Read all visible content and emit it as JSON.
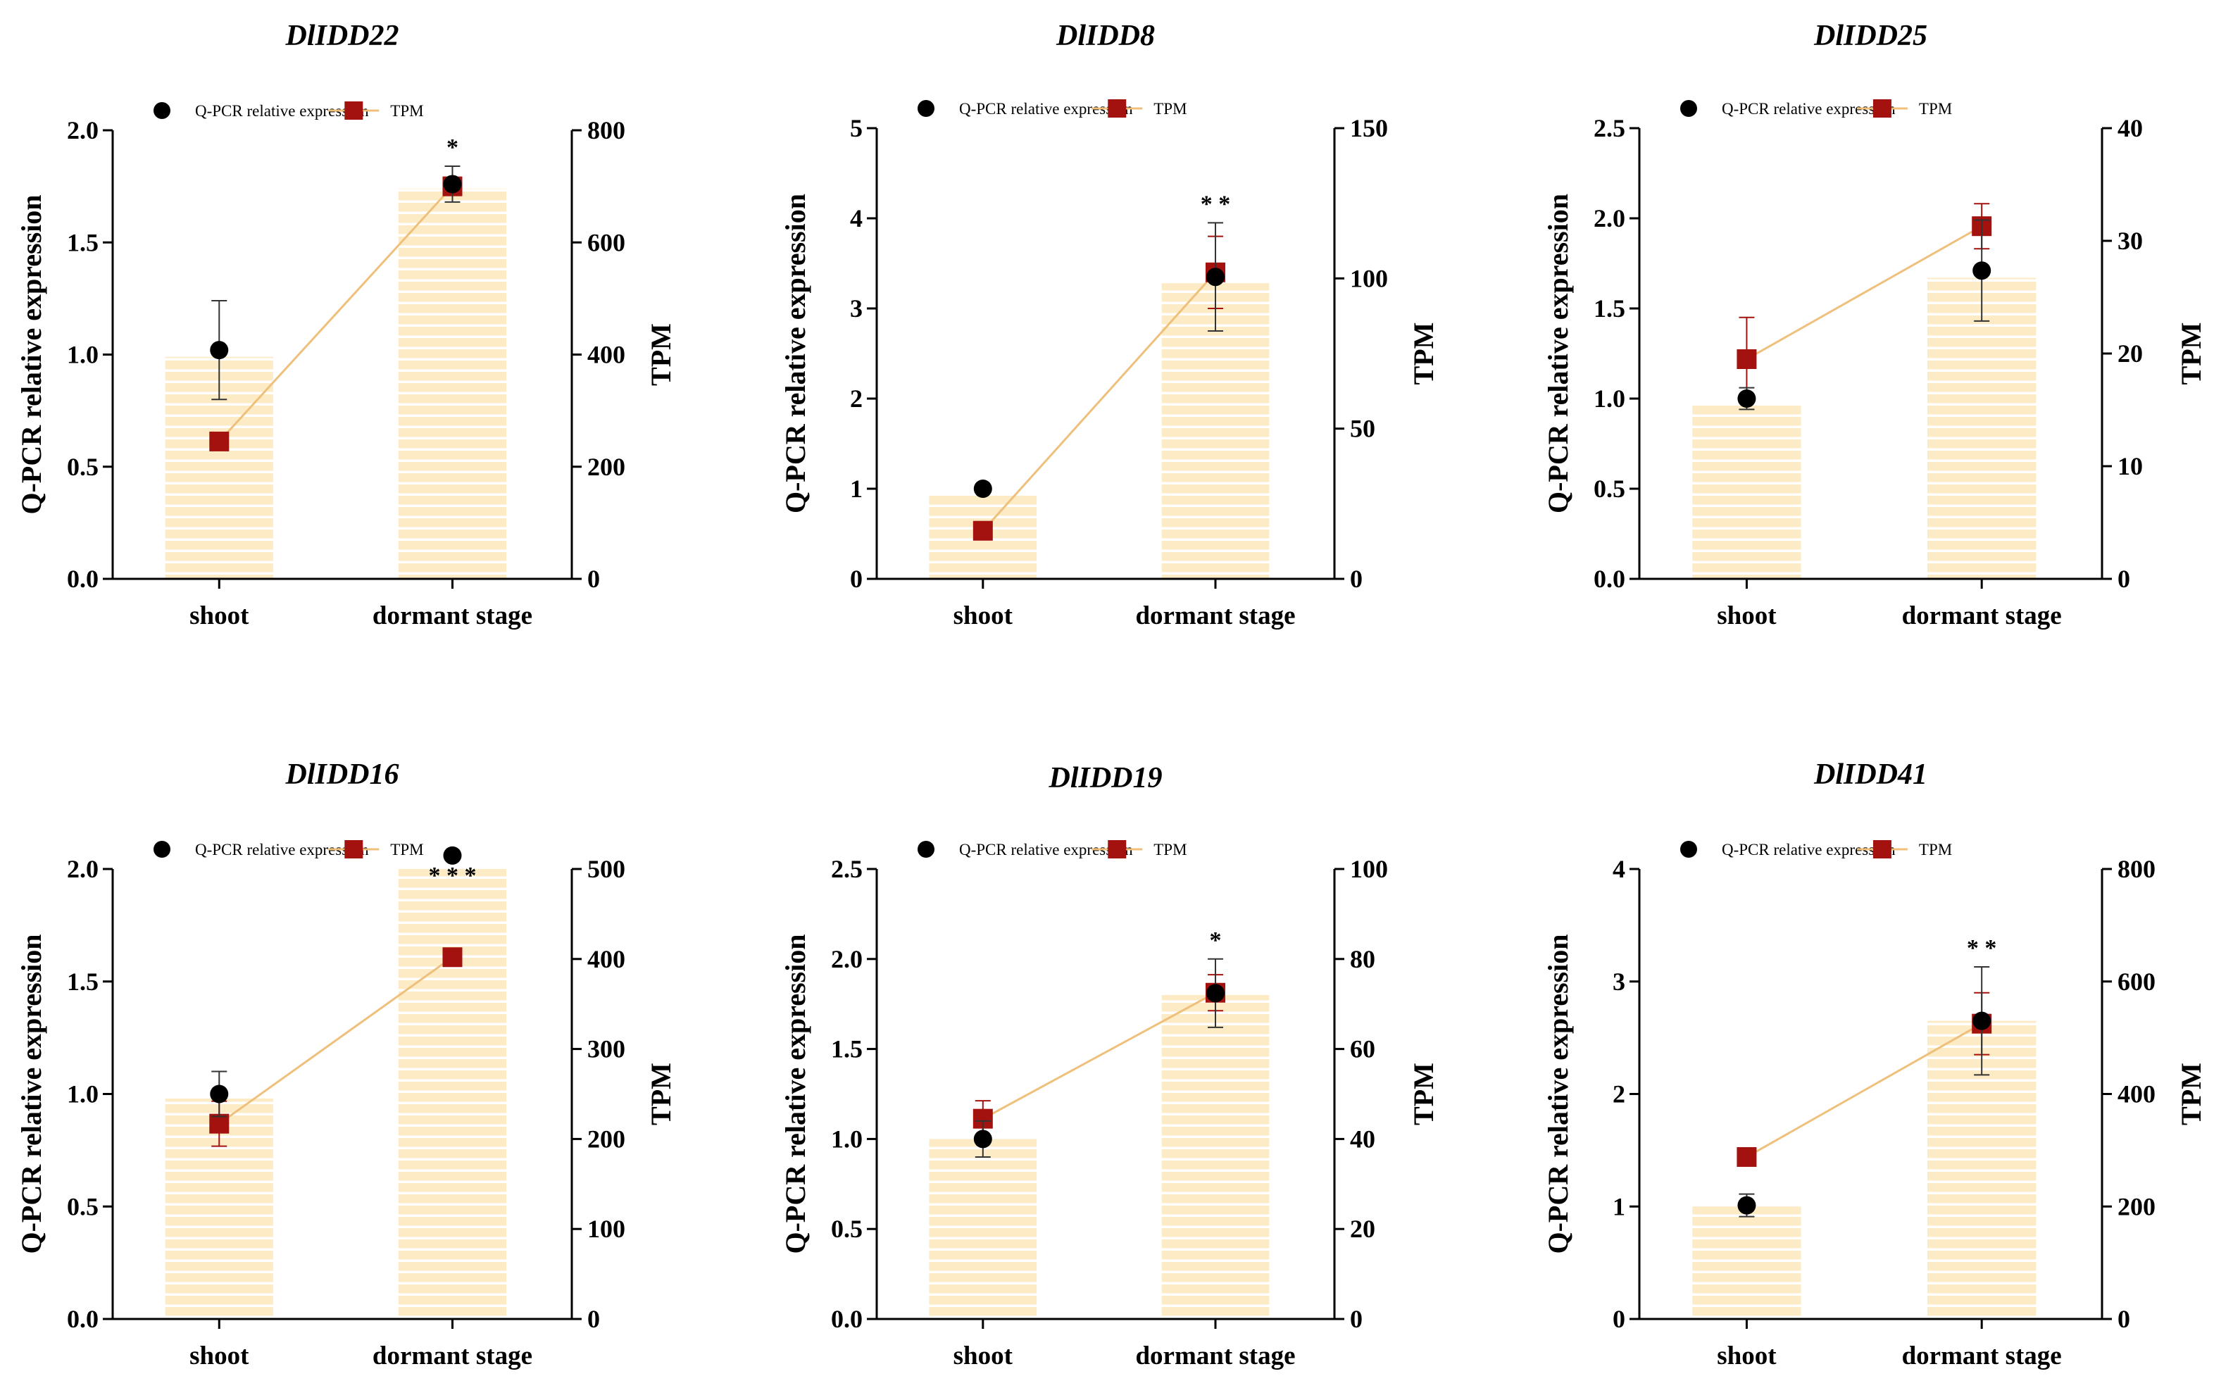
{
  "figure": {
    "legend": {
      "qpcr_label": "Q-PCR relative expression",
      "tpm_label": "TPM"
    },
    "colors": {
      "bar": "#fcebc4",
      "bar_stripe": "#ffffff",
      "line": "#eec07c",
      "marker_tpm": "#a3120f",
      "marker_qpcr": "#000000",
      "axis": "#000000"
    }
  },
  "chart_data": [
    {
      "type": "bar",
      "title": "DlIDD22",
      "categories": [
        "shoot",
        "dormant stage"
      ],
      "ylabel": "Q-PCR relative expression",
      "y2label": "TPM",
      "ylim": [
        0,
        2.0
      ],
      "yticks": [
        0.0,
        0.5,
        1.0,
        1.5,
        2.0
      ],
      "ytick_labels": [
        "0.0",
        "0.5",
        "1.0",
        "1.5",
        "2.0"
      ],
      "y2lim": [
        0,
        800
      ],
      "y2ticks": [
        0,
        200,
        400,
        600,
        800
      ],
      "y2tick_labels": [
        "0",
        "200",
        "400",
        "600",
        "800"
      ],
      "series": [
        {
          "name": "Q-PCR relative expression (bar)",
          "values": [
            0.99,
            1.74
          ]
        },
        {
          "name": "Q-PCR relative expression",
          "values": [
            1.02,
            1.76
          ],
          "errors": [
            0.22,
            0.08
          ]
        },
        {
          "name": "TPM",
          "values": [
            245,
            700
          ],
          "errors": [
            0,
            10
          ]
        }
      ],
      "significance": [
        {
          "category": "dormant stage",
          "label": "*"
        }
      ]
    },
    {
      "type": "bar",
      "title": "DlIDD8",
      "categories": [
        "shoot",
        "dormant stage"
      ],
      "ylabel": "Q-PCR relative expression",
      "y2label": "TPM",
      "ylim": [
        0,
        5
      ],
      "yticks": [
        0,
        1,
        2,
        3,
        4,
        5
      ],
      "ytick_labels": [
        "0",
        "1",
        "2",
        "3",
        "4",
        "5"
      ],
      "y2lim": [
        0,
        150
      ],
      "y2ticks": [
        0,
        50,
        100,
        150
      ],
      "y2tick_labels": [
        "0",
        "50",
        "100",
        "150"
      ],
      "series": [
        {
          "name": "Q-PCR relative expression (bar)",
          "values": [
            0.93,
            3.28
          ]
        },
        {
          "name": "Q-PCR relative expression",
          "values": [
            1.0,
            3.35
          ],
          "errors": [
            0.02,
            0.6
          ]
        },
        {
          "name": "TPM",
          "values": [
            16,
            102
          ],
          "errors": [
            3,
            12
          ]
        }
      ],
      "significance": [
        {
          "category": "dormant stage",
          "label": "* *"
        }
      ]
    },
    {
      "type": "bar",
      "title": "DlIDD25",
      "categories": [
        "shoot",
        "dormant stage"
      ],
      "ylabel": "Q-PCR relative expression",
      "y2label": "TPM",
      "ylim": [
        0,
        2.5
      ],
      "yticks": [
        0.0,
        0.5,
        1.0,
        1.5,
        2.0,
        2.5
      ],
      "ytick_labels": [
        "0.0",
        "0.5",
        "1.0",
        "1.5",
        "2.0",
        "2.5"
      ],
      "y2lim": [
        0,
        40
      ],
      "y2ticks": [
        0,
        10,
        20,
        30,
        40
      ],
      "y2tick_labels": [
        "0",
        "10",
        "20",
        "30",
        "40"
      ],
      "series": [
        {
          "name": "Q-PCR relative expression (bar)",
          "values": [
            0.97,
            1.67
          ]
        },
        {
          "name": "Q-PCR relative expression",
          "values": [
            1.0,
            1.71
          ],
          "errors": [
            0.06,
            0.28
          ]
        },
        {
          "name": "TPM",
          "values": [
            19.5,
            31.3
          ],
          "errors": [
            3.7,
            2.0
          ]
        }
      ],
      "significance": []
    },
    {
      "type": "bar",
      "title": "DlIDD16",
      "categories": [
        "shoot",
        "dormant stage"
      ],
      "ylabel": "Q-PCR relative expression",
      "y2label": "TPM",
      "ylim": [
        0,
        2.0
      ],
      "yticks": [
        0.0,
        0.5,
        1.0,
        1.5,
        2.0
      ],
      "ytick_labels": [
        "0.0",
        "0.5",
        "1.0",
        "1.5",
        "2.0"
      ],
      "y2lim": [
        0,
        500
      ],
      "y2ticks": [
        0,
        100,
        200,
        300,
        400,
        500
      ],
      "y2tick_labels": [
        "0",
        "100",
        "200",
        "300",
        "400",
        "500"
      ],
      "series": [
        {
          "name": "Q-PCR relative expression (bar)",
          "values": [
            0.98,
            2.0
          ]
        },
        {
          "name": "Q-PCR relative expression",
          "values": [
            1.0,
            2.06
          ],
          "errors": [
            0.1,
            0
          ]
        },
        {
          "name": "TPM",
          "values": [
            217,
            402
          ],
          "errors": [
            25,
            0
          ]
        }
      ],
      "significance": [
        {
          "category": "dormant stage",
          "label": "* * *"
        }
      ]
    },
    {
      "type": "bar",
      "title": "DlIDD19",
      "categories": [
        "shoot",
        "dormant stage"
      ],
      "ylabel": "Q-PCR relative expression",
      "y2label": "TPM",
      "ylim": [
        0,
        2.5
      ],
      "yticks": [
        0.0,
        0.5,
        1.0,
        1.5,
        2.0,
        2.5
      ],
      "ytick_labels": [
        "0.0",
        "0.5",
        "1.0",
        "1.5",
        "2.0",
        "2.5"
      ],
      "y2lim": [
        0,
        100
      ],
      "y2ticks": [
        0,
        20,
        40,
        60,
        80,
        100
      ],
      "y2tick_labels": [
        "0",
        "20",
        "40",
        "60",
        "80",
        "100"
      ],
      "series": [
        {
          "name": "Q-PCR relative expression (bar)",
          "values": [
            1.0,
            1.8
          ]
        },
        {
          "name": "Q-PCR relative expression",
          "values": [
            1.0,
            1.81
          ],
          "errors": [
            0.1,
            0.19
          ]
        },
        {
          "name": "TPM",
          "values": [
            44.5,
            72.5
          ],
          "errors": [
            4,
            4
          ]
        }
      ],
      "significance": [
        {
          "category": "dormant stage",
          "label": "*"
        }
      ]
    },
    {
      "type": "bar",
      "title": "DlIDD41",
      "categories": [
        "shoot",
        "dormant stage"
      ],
      "ylabel": "Q-PCR relative expression",
      "y2label": "TPM",
      "ylim": [
        0,
        4
      ],
      "yticks": [
        0,
        1,
        2,
        3,
        4
      ],
      "ytick_labels": [
        "0",
        "1",
        "2",
        "3",
        "4"
      ],
      "y2lim": [
        0,
        800
      ],
      "y2ticks": [
        0,
        200,
        400,
        600,
        800
      ],
      "y2tick_labels": [
        "0",
        "200",
        "400",
        "600",
        "800"
      ],
      "series": [
        {
          "name": "Q-PCR relative expression (bar)",
          "values": [
            1.0,
            2.65
          ]
        },
        {
          "name": "Q-PCR relative expression",
          "values": [
            1.01,
            2.65
          ],
          "errors": [
            0.1,
            0.48
          ]
        },
        {
          "name": "TPM",
          "values": [
            288,
            525
          ],
          "errors": [
            12,
            55
          ]
        }
      ],
      "significance": [
        {
          "category": "dormant stage",
          "label": "* *"
        }
      ]
    }
  ]
}
